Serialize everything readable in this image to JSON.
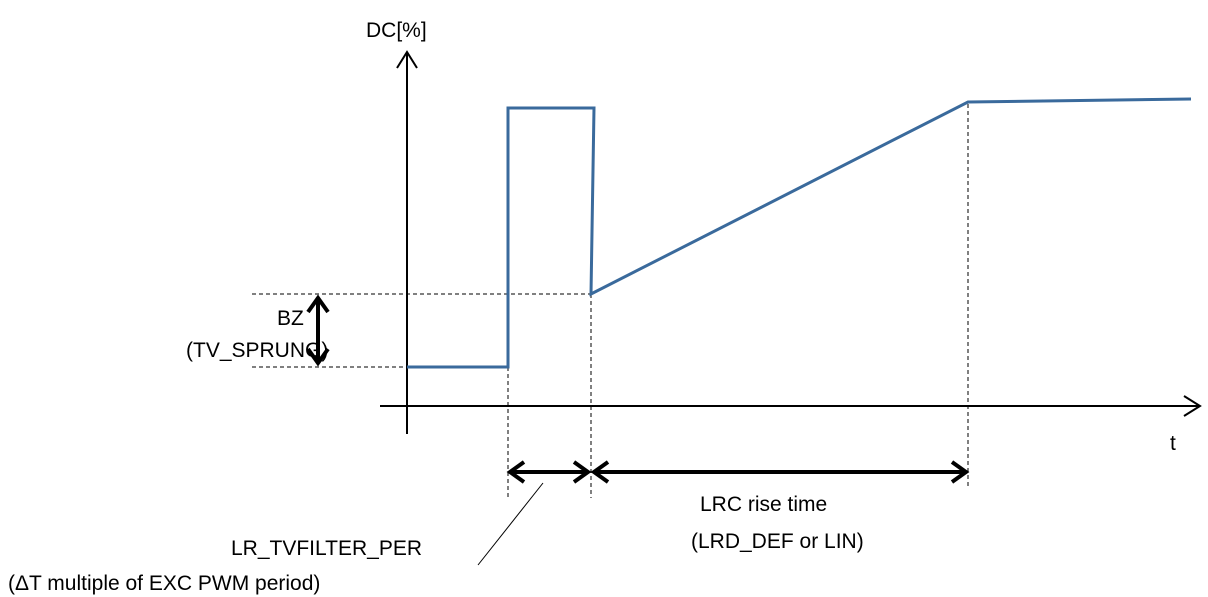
{
  "axes": {
    "y_label": "DC[%]",
    "x_label": "t"
  },
  "annotations": {
    "bz_label": "BZ",
    "bz_param": "(TV_SPRUNG)",
    "filter_label": "LR_TVFILTER_PER",
    "filter_note": "(ΔT multiple of EXC PWM period)",
    "rise_label": "LRC rise time",
    "rise_param": "(LRD_DEF or LIN)"
  },
  "colors": {
    "signal": "#3a6a9c",
    "axis": "#000000"
  }
}
